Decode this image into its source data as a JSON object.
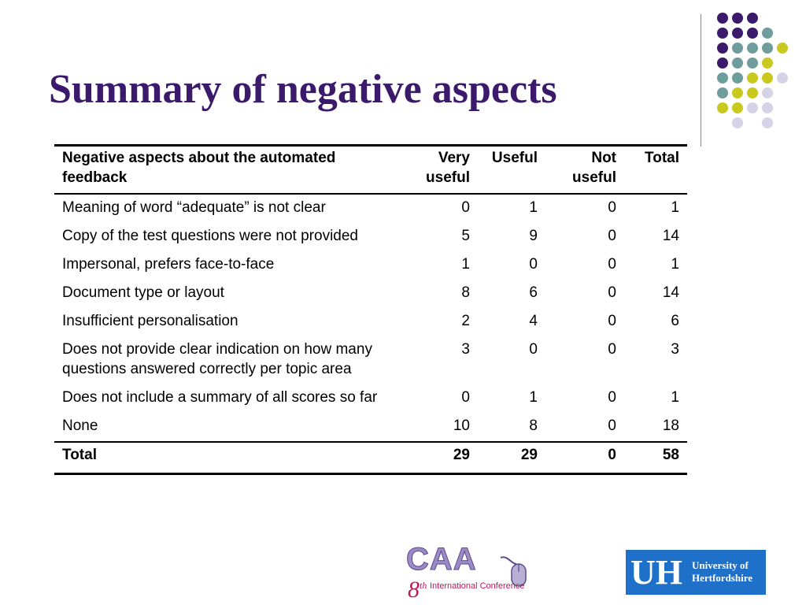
{
  "slide": {
    "title": "Summary of negative aspects"
  },
  "table": {
    "headers": [
      "Negative aspects about the automated feedback",
      "Very useful",
      "Useful",
      "Not useful",
      "Total"
    ],
    "rows": [
      {
        "aspect": "Meaning of word “adequate” is not clear",
        "very_useful": "0",
        "useful": "1",
        "not_useful": "0",
        "total": "1"
      },
      {
        "aspect": "Copy of the test questions were not provided",
        "very_useful": "5",
        "useful": "9",
        "not_useful": "0",
        "total": "14"
      },
      {
        "aspect": "Impersonal, prefers face-to-face",
        "very_useful": "1",
        "useful": "0",
        "not_useful": "0",
        "total": "1"
      },
      {
        "aspect": "Document type or layout",
        "very_useful": "8",
        "useful": "6",
        "not_useful": "0",
        "total": "14"
      },
      {
        "aspect": "Insufficient personalisation",
        "very_useful": "2",
        "useful": "4",
        "not_useful": "0",
        "total": "6"
      },
      {
        "aspect": "Does not provide clear indication on how many questions answered correctly per topic area",
        "very_useful": "3",
        "useful": "0",
        "not_useful": "0",
        "total": "3"
      },
      {
        "aspect": "Does not include a summary of all scores so far",
        "very_useful": "0",
        "useful": "1",
        "not_useful": "0",
        "total": "1"
      },
      {
        "aspect": "None",
        "very_useful": "10",
        "useful": "8",
        "not_useful": "0",
        "total": "18"
      }
    ],
    "footer": {
      "label": "Total",
      "very_useful": "29",
      "useful": "29",
      "not_useful": "0",
      "total": "58"
    }
  },
  "logos": {
    "caa": {
      "wordmark": "CAA",
      "ordinal": "8",
      "ordinal_suffix": "th",
      "subtitle": "International Conference"
    },
    "uh": {
      "mark": "UH",
      "line1": "University of",
      "line2": "Hertfordshire"
    }
  },
  "colors": {
    "title": "#3b1a6b",
    "dot_purple": "#3b1a6b",
    "dot_teal": "#6f9c9c",
    "dot_yellow": "#c9c81e",
    "dot_lavender": "#d6d3e6",
    "uh_blue": "#1f70c9"
  },
  "dot_grid": [
    [
      "purple",
      "purple",
      "purple",
      "",
      "",
      ""
    ],
    [
      "purple",
      "purple",
      "purple",
      "teal",
      "",
      ""
    ],
    [
      "purple",
      "teal",
      "teal",
      "teal",
      "yellow",
      ""
    ],
    [
      "purple",
      "teal",
      "teal",
      "yellow",
      "",
      ""
    ],
    [
      "teal",
      "teal",
      "yellow",
      "yellow",
      "lavender",
      ""
    ],
    [
      "teal",
      "yellow",
      "yellow",
      "lavender",
      "",
      ""
    ],
    [
      "yellow",
      "yellow",
      "lavender",
      "lavender",
      "",
      ""
    ],
    [
      "",
      "lavender",
      "",
      "lavender",
      "",
      ""
    ]
  ]
}
